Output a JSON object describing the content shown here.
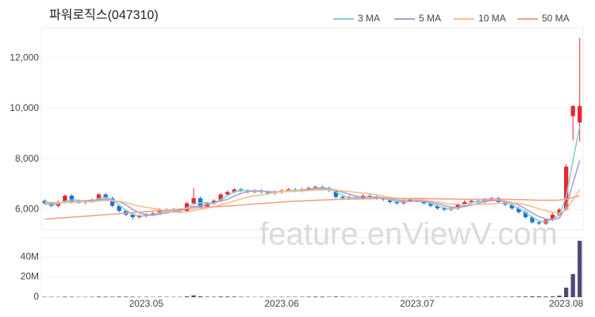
{
  "chart_data": {
    "type": "candlestick",
    "title": "파워로직스(047310)",
    "watermark": "feature.enViewV.com",
    "up_color": "#e8262f",
    "down_color": "#1f6fd6",
    "volume_color": "#4b4a78",
    "categories": [
      null,
      null,
      null,
      null,
      null,
      null,
      null,
      null,
      null,
      null,
      null,
      null,
      null,
      null,
      null,
      "2023.05",
      null,
      null,
      null,
      null,
      null,
      null,
      null,
      null,
      null,
      null,
      null,
      null,
      null,
      null,
      null,
      null,
      null,
      null,
      null,
      "2023.06",
      null,
      null,
      null,
      null,
      null,
      null,
      null,
      null,
      null,
      null,
      null,
      null,
      null,
      null,
      null,
      null,
      null,
      null,
      null,
      "2023.07",
      null,
      null,
      null,
      null,
      null,
      null,
      null,
      null,
      null,
      null,
      null,
      null,
      null,
      null,
      null,
      null,
      null,
      null,
      null,
      null,
      null,
      "2023.08",
      null,
      null
    ],
    "open": [
      6350,
      6250,
      6150,
      6300,
      6550,
      6300,
      6280,
      6330,
      6380,
      6600,
      6450,
      6150,
      5950,
      5800,
      5700,
      5750,
      5800,
      5850,
      6000,
      5950,
      6000,
      5950,
      6250,
      6450,
      6100,
      6250,
      6350,
      6600,
      6700,
      6800,
      6750,
      6700,
      6750,
      6700,
      6650,
      6700,
      6750,
      6800,
      6750,
      6800,
      6850,
      6900,
      6850,
      6750,
      6500,
      6450,
      6500,
      6450,
      6550,
      6500,
      6450,
      6400,
      6300,
      6250,
      6350,
      6400,
      6350,
      6250,
      6150,
      6050,
      6000,
      6050,
      6200,
      6300,
      6350,
      6300,
      6400,
      6450,
      6300,
      6200,
      6050,
      5900,
      5700,
      5500,
      5450,
      5600,
      5800,
      6000,
      9700,
      9450
    ],
    "high": [
      6410,
      6310,
      6360,
      6610,
      6610,
      6360,
      6390,
      6440,
      6660,
      6660,
      6510,
      6210,
      6010,
      5860,
      5810,
      5860,
      5910,
      6060,
      6060,
      6060,
      6060,
      6310,
      6850,
      6510,
      6310,
      6410,
      6660,
      6760,
      6860,
      6860,
      6810,
      6810,
      6810,
      6760,
      6760,
      6810,
      6860,
      6860,
      6860,
      6910,
      6960,
      6960,
      6910,
      6810,
      6560,
      6560,
      6560,
      6610,
      6610,
      6560,
      6510,
      6460,
      6360,
      6410,
      6460,
      6460,
      6410,
      6310,
      6210,
      6110,
      6110,
      6260,
      6360,
      6410,
      6410,
      6460,
      6510,
      6510,
      6360,
      6260,
      6110,
      5960,
      5760,
      5560,
      5660,
      5860,
      6060,
      7800,
      10150,
      12800
    ],
    "low": [
      6190,
      6090,
      6090,
      6240,
      6240,
      6220,
      6220,
      6270,
      6320,
      6390,
      6090,
      5890,
      5740,
      5600,
      5640,
      5690,
      5740,
      5790,
      5890,
      5890,
      5890,
      5890,
      6190,
      6040,
      6040,
      6190,
      6290,
      6540,
      6640,
      6690,
      6640,
      6640,
      6640,
      6590,
      6590,
      6640,
      6690,
      6690,
      6690,
      6740,
      6790,
      6790,
      6690,
      6440,
      6390,
      6390,
      6390,
      6390,
      6440,
      6390,
      6340,
      6240,
      6190,
      6190,
      6290,
      6290,
      6190,
      6090,
      5990,
      5940,
      5940,
      5990,
      6140,
      6240,
      6240,
      6240,
      6340,
      6240,
      6140,
      5990,
      5840,
      5640,
      5440,
      5390,
      5390,
      5540,
      5740,
      5950,
      8750,
      8700
    ],
    "close": [
      6250,
      6150,
      6300,
      6550,
      6300,
      6280,
      6330,
      6380,
      6600,
      6450,
      6150,
      5950,
      5800,
      5700,
      5750,
      5800,
      5850,
      6000,
      5950,
      6000,
      5950,
      6250,
      6450,
      6100,
      6250,
      6350,
      6600,
      6700,
      6800,
      6750,
      6700,
      6750,
      6700,
      6650,
      6700,
      6750,
      6800,
      6750,
      6800,
      6850,
      6900,
      6850,
      6750,
      6500,
      6450,
      6500,
      6450,
      6550,
      6500,
      6450,
      6400,
      6300,
      6250,
      6350,
      6400,
      6350,
      6250,
      6150,
      6050,
      6000,
      6050,
      6200,
      6300,
      6350,
      6300,
      6400,
      6450,
      6300,
      6200,
      6050,
      5900,
      5700,
      5500,
      5450,
      5600,
      5800,
      6000,
      7700,
      10100,
      10100
    ],
    "volume": [
      400000,
      350000,
      300000,
      500000,
      450000,
      300000,
      280000,
      320000,
      600000,
      500000,
      450000,
      600000,
      550000,
      500000,
      400000,
      350000,
      300000,
      450000,
      350000,
      300000,
      300000,
      800000,
      1800000,
      900000,
      500000,
      450000,
      700000,
      650000,
      600000,
      400000,
      350000,
      300000,
      300000,
      280000,
      300000,
      350000,
      400000,
      350000,
      400000,
      500000,
      600000,
      550000,
      450000,
      700000,
      500000,
      350000,
      300000,
      350000,
      300000,
      280000,
      300000,
      350000,
      300000,
      280000,
      300000,
      280000,
      300000,
      350000,
      400000,
      350000,
      300000,
      400000,
      450000,
      400000,
      350000,
      400000,
      500000,
      450000,
      400000,
      500000,
      600000,
      700000,
      900000,
      800000,
      700000,
      900000,
      1500000,
      9500000,
      23000000,
      56000000
    ],
    "series": [
      {
        "name": "3 MA",
        "color": "#7fd3d0",
        "values": [
          6230,
          6200,
          6230,
          6330,
          6380,
          6380,
          6300,
          6330,
          6440,
          6480,
          6400,
          6180,
          5970,
          5820,
          5750,
          5750,
          5800,
          5880,
          5930,
          5980,
          5970,
          6070,
          6220,
          6270,
          6270,
          6230,
          6400,
          6550,
          6700,
          6750,
          6750,
          6730,
          6720,
          6700,
          6680,
          6700,
          6750,
          6770,
          6780,
          6800,
          6850,
          6870,
          6830,
          6700,
          6570,
          6480,
          6470,
          6500,
          6500,
          6500,
          6450,
          6380,
          6320,
          6300,
          6330,
          6370,
          6330,
          6250,
          6150,
          6070,
          6030,
          6080,
          6180,
          6280,
          6320,
          6350,
          6380,
          6380,
          6320,
          6180,
          6050,
          5880,
          5700,
          5550,
          5520,
          5620,
          5800,
          6500,
          7930,
          9300
        ]
      },
      {
        "name": "5 MA",
        "color": "#b69bd0",
        "values": [
          6280,
          6260,
          6250,
          6290,
          6310,
          6320,
          6350,
          6370,
          6380,
          6410,
          6380,
          6310,
          6190,
          6010,
          5870,
          5800,
          5780,
          5820,
          5870,
          5920,
          5950,
          6030,
          6120,
          6150,
          6200,
          6280,
          6350,
          6400,
          6540,
          6640,
          6710,
          6740,
          6740,
          6710,
          6700,
          6710,
          6720,
          6730,
          6760,
          6790,
          6820,
          6830,
          6830,
          6770,
          6690,
          6610,
          6530,
          6490,
          6490,
          6490,
          6470,
          6440,
          6380,
          6350,
          6340,
          6330,
          6320,
          6300,
          6240,
          6160,
          6100,
          6090,
          6120,
          6180,
          6240,
          6310,
          6360,
          6360,
          6330,
          6280,
          6180,
          6030,
          5870,
          5720,
          5630,
          5610,
          5670,
          6110,
          7040,
          7940
        ]
      },
      {
        "name": "10 MA",
        "color": "#f5c08a",
        "values": [
          6300,
          6290,
          6280,
          6280,
          6290,
          6300,
          6310,
          6310,
          6340,
          6360,
          6350,
          6330,
          6280,
          6200,
          6140,
          6090,
          6050,
          6010,
          5940,
          5900,
          5880,
          5910,
          5970,
          6010,
          6060,
          6120,
          6190,
          6260,
          6350,
          6420,
          6500,
          6550,
          6570,
          6630,
          6670,
          6710,
          6730,
          6740,
          6740,
          6750,
          6770,
          6780,
          6780,
          6770,
          6740,
          6720,
          6680,
          6660,
          6630,
          6590,
          6540,
          6490,
          6440,
          6420,
          6420,
          6400,
          6380,
          6340,
          6300,
          6250,
          6220,
          6210,
          6210,
          6210,
          6200,
          6210,
          6230,
          6240,
          6260,
          6260,
          6250,
          6200,
          6120,
          6030,
          5960,
          5900,
          5850,
          5990,
          6380,
          6790
        ]
      },
      {
        "name": "50 MA",
        "color": "#f2a08a",
        "values": [
          5620,
          5640,
          5660,
          5680,
          5700,
          5720,
          5740,
          5760,
          5780,
          5800,
          5820,
          5840,
          5860,
          5880,
          5900,
          5920,
          5940,
          5960,
          5980,
          6000,
          6020,
          6040,
          6060,
          6080,
          6100,
          6110,
          6120,
          6140,
          6160,
          6180,
          6200,
          6220,
          6240,
          6260,
          6280,
          6300,
          6320,
          6330,
          6340,
          6360,
          6370,
          6380,
          6390,
          6400,
          6410,
          6420,
          6420,
          6430,
          6430,
          6440,
          6440,
          6440,
          6440,
          6440,
          6440,
          6440,
          6440,
          6430,
          6430,
          6420,
          6420,
          6410,
          6410,
          6410,
          6410,
          6410,
          6410,
          6410,
          6410,
          6400,
          6400,
          6390,
          6380,
          6370,
          6370,
          6370,
          6380,
          6410,
          6480,
          6550
        ]
      }
    ],
    "ylim": [
      5200,
      13200
    ],
    "yticks": [
      {
        "value": 6000,
        "label": "6,000"
      },
      {
        "value": 8000,
        "label": "8,000"
      },
      {
        "value": 10000,
        "label": "10,000"
      },
      {
        "value": 12000,
        "label": "12,000"
      }
    ],
    "volume_ylim": [
      0,
      59000000
    ],
    "volume_yticks": [
      0,
      {
        "value": 20000000,
        "label": "20M"
      },
      {
        "value": 40000000,
        "label": "40M"
      }
    ]
  }
}
